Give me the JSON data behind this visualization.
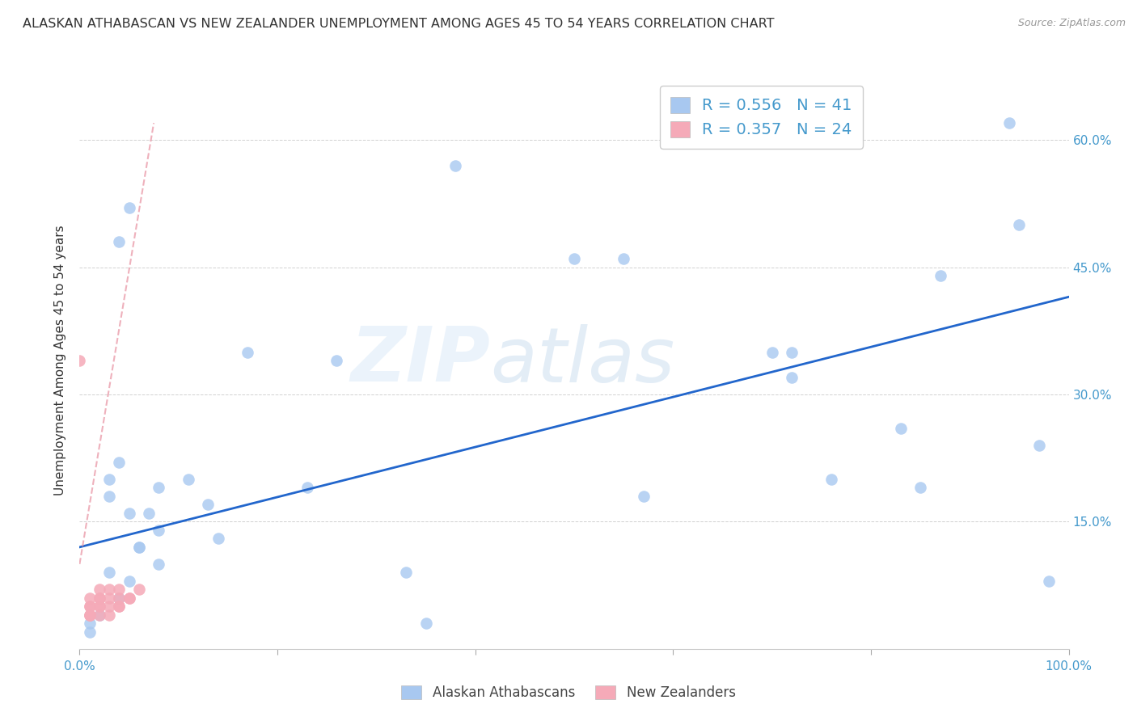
{
  "title": "ALASKAN ATHABASCAN VS NEW ZEALANDER UNEMPLOYMENT AMONG AGES 45 TO 54 YEARS CORRELATION CHART",
  "source": "Source: ZipAtlas.com",
  "ylabel": "Unemployment Among Ages 45 to 54 years",
  "xlim": [
    0,
    1.0
  ],
  "ylim": [
    0,
    0.68
  ],
  "xticks": [
    0.0,
    0.2,
    0.4,
    0.6,
    0.8,
    1.0
  ],
  "xticklabels": [
    "0.0%",
    "",
    "",
    "",
    "",
    "100.0%"
  ],
  "yticks": [
    0.0,
    0.15,
    0.3,
    0.45,
    0.6
  ],
  "right_yticklabels": [
    "",
    "15.0%",
    "30.0%",
    "45.0%",
    "60.0%"
  ],
  "watermark_zip": "ZIP",
  "watermark_atlas": "atlas",
  "legend_labels": [
    "R = 0.556   N = 41",
    "R = 0.357   N = 24"
  ],
  "bottom_legend_labels": [
    "Alaskan Athabascans",
    "New Zealanders"
  ],
  "blue_scatter_x": [
    0.38,
    0.05,
    0.04,
    0.17,
    0.04,
    0.03,
    0.03,
    0.05,
    0.07,
    0.08,
    0.11,
    0.13,
    0.14,
    0.08,
    0.05,
    0.26,
    0.23,
    0.5,
    0.55,
    0.57,
    0.7,
    0.72,
    0.72,
    0.76,
    0.83,
    0.85,
    0.87,
    0.94,
    0.95,
    0.97,
    0.03,
    0.04,
    0.02,
    0.01,
    0.01,
    0.06,
    0.06,
    0.08,
    0.33,
    0.35,
    0.98
  ],
  "blue_scatter_y": [
    0.57,
    0.52,
    0.48,
    0.35,
    0.22,
    0.2,
    0.18,
    0.16,
    0.16,
    0.19,
    0.2,
    0.17,
    0.13,
    0.1,
    0.08,
    0.34,
    0.19,
    0.46,
    0.46,
    0.18,
    0.35,
    0.35,
    0.32,
    0.2,
    0.26,
    0.19,
    0.44,
    0.62,
    0.5,
    0.24,
    0.09,
    0.06,
    0.04,
    0.03,
    0.02,
    0.12,
    0.12,
    0.14,
    0.09,
    0.03,
    0.08
  ],
  "pink_scatter_x": [
    0.0,
    0.01,
    0.01,
    0.01,
    0.01,
    0.01,
    0.01,
    0.02,
    0.02,
    0.02,
    0.02,
    0.02,
    0.02,
    0.03,
    0.03,
    0.03,
    0.03,
    0.04,
    0.04,
    0.04,
    0.04,
    0.05,
    0.05,
    0.06
  ],
  "pink_scatter_y": [
    0.34,
    0.04,
    0.04,
    0.04,
    0.05,
    0.05,
    0.06,
    0.04,
    0.05,
    0.05,
    0.06,
    0.06,
    0.07,
    0.04,
    0.05,
    0.06,
    0.07,
    0.05,
    0.05,
    0.06,
    0.07,
    0.06,
    0.06,
    0.07
  ],
  "blue_line_x": [
    0.0,
    1.0
  ],
  "blue_line_y": [
    0.12,
    0.415
  ],
  "pink_line_x": [
    0.0,
    0.075
  ],
  "pink_line_y": [
    0.1,
    0.62
  ],
  "scatter_size": 110,
  "blue_color": "#a8c8f0",
  "pink_color": "#f5aab8",
  "blue_line_color": "#2266cc",
  "pink_line_color": "#e890a0",
  "background_color": "#ffffff",
  "title_fontsize": 11.5,
  "axis_label_fontsize": 11,
  "tick_fontsize": 11,
  "grid_color": "#cccccc",
  "text_color": "#333333",
  "tick_label_color": "#4499cc"
}
